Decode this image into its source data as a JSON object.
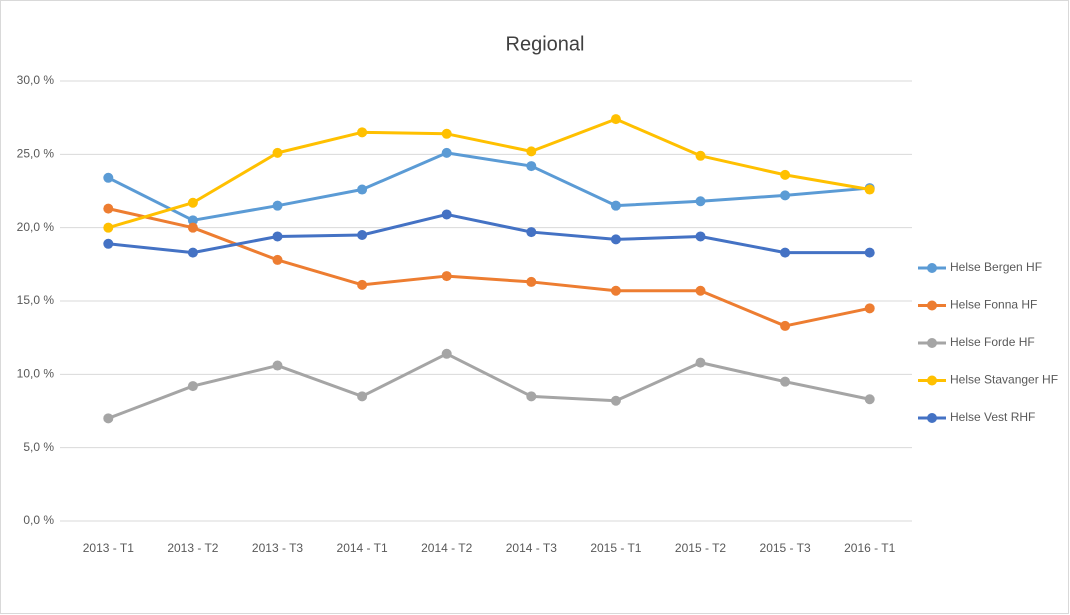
{
  "chart_data": {
    "type": "line",
    "title": "Regional",
    "categories": [
      "2013 - T1",
      "2013 - T2",
      "2013 - T3",
      "2014 - T1",
      "2014 - T2",
      "2014 - T3",
      "2015 - T1",
      "2015 - T2",
      "2015 - T3",
      "2016 - T1"
    ],
    "series": [
      {
        "name": "Helse Bergen HF",
        "color": "#5b9bd5",
        "values": [
          23.4,
          20.5,
          21.5,
          22.6,
          25.1,
          24.2,
          21.5,
          21.8,
          22.2,
          22.7
        ]
      },
      {
        "name": "Helse Fonna HF",
        "color": "#ed7d31",
        "values": [
          21.3,
          20.0,
          17.8,
          16.1,
          16.7,
          16.3,
          15.7,
          15.7,
          13.3,
          14.5
        ]
      },
      {
        "name": "Helse Forde HF",
        "color": "#a5a5a5",
        "values": [
          7.0,
          9.2,
          10.6,
          8.5,
          11.4,
          8.5,
          8.2,
          10.8,
          9.5,
          8.3
        ]
      },
      {
        "name": "Helse Stavanger HF",
        "color": "#ffc000",
        "values": [
          20.0,
          21.7,
          25.1,
          26.5,
          26.4,
          25.2,
          27.4,
          24.9,
          23.6,
          22.6
        ]
      },
      {
        "name": "Helse Vest RHF",
        "color": "#4472c4",
        "values": [
          18.9,
          18.3,
          19.4,
          19.5,
          20.9,
          19.7,
          19.2,
          19.4,
          18.3,
          18.3
        ]
      }
    ],
    "ylim": [
      0,
      30
    ],
    "yticks": [
      {
        "value": 0,
        "label": "0,0 %"
      },
      {
        "value": 5,
        "label": "5,0 %"
      },
      {
        "value": 10,
        "label": "10,0 %"
      },
      {
        "value": 15,
        "label": "15,0 %"
      },
      {
        "value": 20,
        "label": "20,0 %"
      },
      {
        "value": 25,
        "label": "25,0 %"
      },
      {
        "value": 30,
        "label": "30,0 %"
      }
    ],
    "grid": true,
    "legend": "right"
  }
}
